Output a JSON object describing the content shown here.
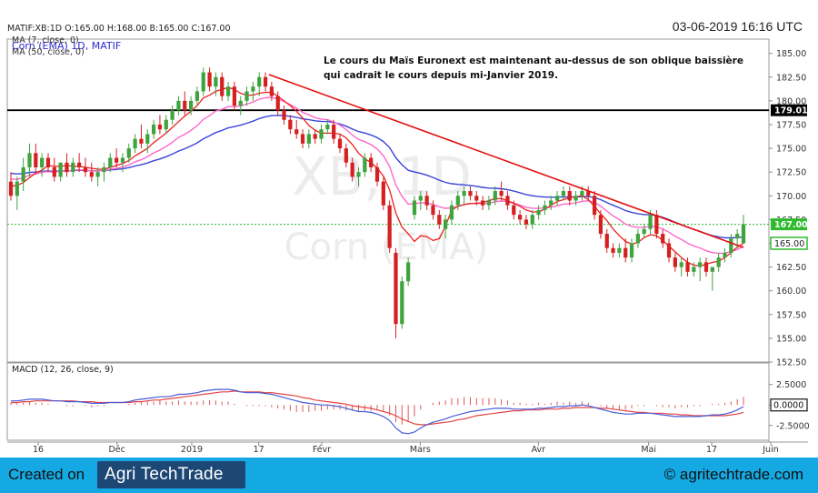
{
  "header": {
    "quote": "MATIF:XB:1D O:165.00 H:168.00 B:165.00 C:167.00",
    "date": "03-06-2019 16:16 UTC",
    "line1": "Corn (EMA) 1D, MATIF",
    "line2": "MA (7, close, 0)",
    "line3": "MA (50, close, 0)"
  },
  "annotation": {
    "line1": "Le cours du Maïs Euronext est maintenant au-dessus de son oblique baissière",
    "line2": "qui cadrait le cours depuis mi-Janvier 2019."
  },
  "watermark": {
    "symbol": "XB, 1D",
    "name": "Corn (EMA)"
  },
  "macd_label": "MACD (12, 26, close, 9)",
  "footer": {
    "created_on": "Created on",
    "logo": "Agri TechTrade",
    "copyright": "© agritechtrade.com"
  },
  "colors": {
    "up": "#3fa33f",
    "down": "#d42020",
    "ma7": "#ee2020",
    "ma50": "#ff66cc",
    "ma_long": "#3a45d8",
    "trendline": "#e21010",
    "resistance": "#000000",
    "current": "#2dbb2d",
    "macd": "#4a5cd8",
    "signal": "#e64545",
    "footer_bg": "#15a9e4",
    "logo_bg": "#1d4775"
  },
  "chart_data": [
    {
      "type": "candlestick",
      "title": "Corn (EMA) 1D, MATIF",
      "ylim": [
        152.5,
        186.5
      ],
      "y_ticks": [
        "152.50",
        "155.00",
        "157.50",
        "160.00",
        "162.50",
        "165.00",
        "167.50",
        "170.00",
        "172.50",
        "175.00",
        "177.50",
        "180.00",
        "182.50",
        "185.00"
      ],
      "x_tick_labels": [
        "16",
        "Déc",
        "2019",
        "17",
        "Févr",
        "Mars",
        "Avr",
        "Mai",
        "17",
        "Juin"
      ],
      "price_labels": {
        "resistance": "179.01",
        "current": "167.00",
        "previous": "165.00"
      },
      "resistance_level": 179.01,
      "current_level": 167.0,
      "previous_level": 165.0,
      "ohlc": [
        [
          171.5,
          172.5,
          169.5,
          170.0
        ],
        [
          170.0,
          172.0,
          168.5,
          171.5
        ],
        [
          171.5,
          174.0,
          170.5,
          173.0
        ],
        [
          173.0,
          175.5,
          172.0,
          174.5
        ],
        [
          174.5,
          175.5,
          172.5,
          173.0
        ],
        [
          173.0,
          174.5,
          172.0,
          174.0
        ],
        [
          174.0,
          174.5,
          172.5,
          173.0
        ],
        [
          173.0,
          174.0,
          171.5,
          172.0
        ],
        [
          172.0,
          173.5,
          171.5,
          173.5
        ],
        [
          173.5,
          174.5,
          172.0,
          172.5
        ],
        [
          172.5,
          174.0,
          172.0,
          173.5
        ],
        [
          173.5,
          174.5,
          172.5,
          173.0
        ],
        [
          173.0,
          174.0,
          172.0,
          172.5
        ],
        [
          172.5,
          173.5,
          171.5,
          172.0
        ],
        [
          172.0,
          173.0,
          171.0,
          172.5
        ],
        [
          172.5,
          173.5,
          171.5,
          173.0
        ],
        [
          173.0,
          174.5,
          172.5,
          174.0
        ],
        [
          174.0,
          175.0,
          173.0,
          173.5
        ],
        [
          173.5,
          174.5,
          172.5,
          174.0
        ],
        [
          174.0,
          175.5,
          173.5,
          175.0
        ],
        [
          175.0,
          176.5,
          174.5,
          176.0
        ],
        [
          176.0,
          177.5,
          175.0,
          175.5
        ],
        [
          175.5,
          177.0,
          174.5,
          176.5
        ],
        [
          176.5,
          178.0,
          176.0,
          177.5
        ],
        [
          177.5,
          178.5,
          176.5,
          177.0
        ],
        [
          177.0,
          178.5,
          176.5,
          178.0
        ],
        [
          178.0,
          179.5,
          177.5,
          179.0
        ],
        [
          179.0,
          180.5,
          178.5,
          180.0
        ],
        [
          180.0,
          181.0,
          178.5,
          179.0
        ],
        [
          179.0,
          180.5,
          178.5,
          180.0
        ],
        [
          180.0,
          181.5,
          179.5,
          181.0
        ],
        [
          181.0,
          183.5,
          180.5,
          183.0
        ],
        [
          183.0,
          183.5,
          181.0,
          181.5
        ],
        [
          181.5,
          183.0,
          180.5,
          182.5
        ],
        [
          182.5,
          183.0,
          180.0,
          180.5
        ],
        [
          180.5,
          182.0,
          180.0,
          181.5
        ],
        [
          181.5,
          182.0,
          179.0,
          179.5
        ],
        [
          179.5,
          180.5,
          178.5,
          180.0
        ],
        [
          180.0,
          181.5,
          179.5,
          181.0
        ],
        [
          181.0,
          182.0,
          180.0,
          181.5
        ],
        [
          181.5,
          183.0,
          180.5,
          182.5
        ],
        [
          182.5,
          183.0,
          181.0,
          181.5
        ],
        [
          181.5,
          182.0,
          180.0,
          180.5
        ],
        [
          180.5,
          181.0,
          178.5,
          179.0
        ],
        [
          179.0,
          179.5,
          177.5,
          178.0
        ],
        [
          178.0,
          178.5,
          176.5,
          177.0
        ],
        [
          177.0,
          178.0,
          176.0,
          176.5
        ],
        [
          176.5,
          177.0,
          175.0,
          175.5
        ],
        [
          175.5,
          177.0,
          175.0,
          176.5
        ],
        [
          176.5,
          177.0,
          175.5,
          176.0
        ],
        [
          176.0,
          177.5,
          175.5,
          177.0
        ],
        [
          177.0,
          178.0,
          176.5,
          177.5
        ],
        [
          177.5,
          178.0,
          175.5,
          176.0
        ],
        [
          176.0,
          176.5,
          174.5,
          175.0
        ],
        [
          175.0,
          175.5,
          173.0,
          173.5
        ],
        [
          173.5,
          174.0,
          171.5,
          172.0
        ],
        [
          172.0,
          173.0,
          171.0,
          172.5
        ],
        [
          172.5,
          174.5,
          172.0,
          174.0
        ],
        [
          174.0,
          174.5,
          172.5,
          173.0
        ],
        [
          173.0,
          173.5,
          171.0,
          171.5
        ],
        [
          171.5,
          172.0,
          168.5,
          169.0
        ],
        [
          169.0,
          169.5,
          164.0,
          164.5
        ],
        [
          164.0,
          164.5,
          155.0,
          156.5
        ],
        [
          156.5,
          161.5,
          156.0,
          161.0
        ],
        [
          161.0,
          163.5,
          160.5,
          163.0
        ],
        [
          168.0,
          170.0,
          167.5,
          169.5
        ],
        [
          169.5,
          170.5,
          168.5,
          170.0
        ],
        [
          170.0,
          170.5,
          168.5,
          169.0
        ],
        [
          169.0,
          169.5,
          167.5,
          168.0
        ],
        [
          168.0,
          168.5,
          166.5,
          167.0
        ],
        [
          166.5,
          168.0,
          165.5,
          167.5
        ],
        [
          167.5,
          169.5,
          167.0,
          169.0
        ],
        [
          169.0,
          170.5,
          168.5,
          170.0
        ],
        [
          170.0,
          171.0,
          169.0,
          170.5
        ],
        [
          170.5,
          171.0,
          169.5,
          170.0
        ],
        [
          170.0,
          170.5,
          169.0,
          169.5
        ],
        [
          169.5,
          170.0,
          168.5,
          169.0
        ],
        [
          169.0,
          170.0,
          168.5,
          169.5
        ],
        [
          169.5,
          171.0,
          169.0,
          170.5
        ],
        [
          170.5,
          171.5,
          169.5,
          170.0
        ],
        [
          170.0,
          170.5,
          168.5,
          169.0
        ],
        [
          169.0,
          169.5,
          167.5,
          168.0
        ],
        [
          168.0,
          168.5,
          167.0,
          167.5
        ],
        [
          167.5,
          168.0,
          166.5,
          167.0
        ],
        [
          167.0,
          168.5,
          166.5,
          168.0
        ],
        [
          168.0,
          169.0,
          167.5,
          168.5
        ],
        [
          168.5,
          169.5,
          168.0,
          169.0
        ],
        [
          169.0,
          170.0,
          168.5,
          169.5
        ],
        [
          169.5,
          170.5,
          169.0,
          170.0
        ],
        [
          170.0,
          171.0,
          169.5,
          170.5
        ],
        [
          170.5,
          171.0,
          169.0,
          169.5
        ],
        [
          169.5,
          170.5,
          169.0,
          170.0
        ],
        [
          170.0,
          171.0,
          169.5,
          170.5
        ],
        [
          170.5,
          171.0,
          169.5,
          170.0
        ],
        [
          170.0,
          170.5,
          167.5,
          168.0
        ],
        [
          168.0,
          168.5,
          165.5,
          166.0
        ],
        [
          166.0,
          166.5,
          164.0,
          164.5
        ],
        [
          164.5,
          165.0,
          163.5,
          164.0
        ],
        [
          164.0,
          165.0,
          163.5,
          164.5
        ],
        [
          164.5,
          165.5,
          163.0,
          163.5
        ],
        [
          163.5,
          165.5,
          163.0,
          165.0
        ],
        [
          165.0,
          166.5,
          164.5,
          166.0
        ],
        [
          166.0,
          167.0,
          165.5,
          166.5
        ],
        [
          166.5,
          168.5,
          166.0,
          168.0
        ],
        [
          168.0,
          168.5,
          165.5,
          166.0
        ],
        [
          166.0,
          166.5,
          164.5,
          165.0
        ],
        [
          165.0,
          165.5,
          163.0,
          163.5
        ],
        [
          163.5,
          164.0,
          162.0,
          162.5
        ],
        [
          162.5,
          163.5,
          161.5,
          163.0
        ],
        [
          163.0,
          163.5,
          161.5,
          162.0
        ],
        [
          162.0,
          163.0,
          161.5,
          162.5
        ],
        [
          162.5,
          163.5,
          161.0,
          163.0
        ],
        [
          163.0,
          163.5,
          161.5,
          162.0
        ],
        [
          162.0,
          162.5,
          160.0,
          162.5
        ],
        [
          162.5,
          164.0,
          162.0,
          163.5
        ],
        [
          163.5,
          164.5,
          163.0,
          164.0
        ],
        [
          164.0,
          166.0,
          163.5,
          165.5
        ],
        [
          165.5,
          166.5,
          164.5,
          166.0
        ],
        [
          165.0,
          168.0,
          165.0,
          167.0
        ]
      ],
      "ma7": [
        171.0,
        171.1,
        171.4,
        171.9,
        172.4,
        172.7,
        173.2,
        173.1,
        173.1,
        173.2,
        173.1,
        173.1,
        173.0,
        172.9,
        172.8,
        172.8,
        173.0,
        173.2,
        173.4,
        173.7,
        174.2,
        174.6,
        175.0,
        175.6,
        176.1,
        176.6,
        177.2,
        177.8,
        178.4,
        178.9,
        179.5,
        180.3,
        180.6,
        181.0,
        181.2,
        181.4,
        181.2,
        180.8,
        180.6,
        180.6,
        180.8,
        180.9,
        180.9,
        180.5,
        180.0,
        179.5,
        178.9,
        178.2,
        177.4,
        176.9,
        176.6,
        176.6,
        176.6,
        176.5,
        176.1,
        175.4,
        174.5,
        173.9,
        173.5,
        172.9,
        172.1,
        170.6,
        168.2,
        166.7,
        166.0,
        165.2,
        165.8,
        165.7,
        165.3,
        165.5,
        166.8,
        168.5,
        168.9,
        169.1,
        169.2,
        169.2,
        169.3,
        169.5,
        169.7,
        169.7,
        169.5,
        169.2,
        168.9,
        168.5,
        168.3,
        168.3,
        168.6,
        169.0,
        169.4,
        169.6,
        169.8,
        169.9,
        170.0,
        169.6,
        168.9,
        168.1,
        167.4,
        166.5,
        165.8,
        165.2,
        164.9,
        165.1,
        165.6,
        165.9,
        165.8,
        165.3,
        164.7,
        164.1,
        163.5,
        163.0,
        162.7,
        162.6,
        162.8,
        163.0,
        163.1,
        163.5,
        164.0,
        164.6,
        165.0
      ]
    },
    {
      "type": "line",
      "title": "MACD (12, 26, close, 9)",
      "ylim": [
        -4.3,
        3.8
      ],
      "y_ticks": [
        "2.5000",
        "0.0000",
        "-2.5000"
      ],
      "zero_label": "0.0000",
      "series": [
        {
          "values": [
            0.5,
            0.5,
            0.6,
            0.7,
            0.7,
            0.7,
            0.6,
            0.5,
            0.5,
            0.4,
            0.4,
            0.4,
            0.3,
            0.2,
            0.2,
            0.2,
            0.3,
            0.3,
            0.3,
            0.4,
            0.6,
            0.7,
            0.8,
            0.9,
            1.0,
            1.0,
            1.1,
            1.3,
            1.3,
            1.4,
            1.5,
            1.7,
            1.8,
            1.9,
            1.9,
            1.9,
            1.8,
            1.6,
            1.5,
            1.5,
            1.5,
            1.4,
            1.3,
            1.1,
            0.9,
            0.7,
            0.5,
            0.3,
            0.2,
            0.1,
            0.0,
            0.0,
            -0.1,
            -0.2,
            -0.4,
            -0.6,
            -0.8,
            -0.8,
            -0.9,
            -1.1,
            -1.4,
            -1.9,
            -2.8,
            -3.4,
            -3.5,
            -3.3,
            -2.8,
            -2.4,
            -2.1,
            -1.9,
            -1.7,
            -1.4,
            -1.2,
            -1.0,
            -0.8,
            -0.7,
            -0.6,
            -0.5,
            -0.4,
            -0.4,
            -0.4,
            -0.5,
            -0.5,
            -0.5,
            -0.5,
            -0.4,
            -0.4,
            -0.3,
            -0.2,
            -0.2,
            -0.1,
            -0.1,
            0.0,
            -0.1,
            -0.3,
            -0.5,
            -0.7,
            -0.9,
            -1.0,
            -1.1,
            -1.1,
            -1.0,
            -1.0,
            -1.0,
            -1.1,
            -1.2,
            -1.3,
            -1.4,
            -1.4,
            -1.4,
            -1.4,
            -1.4,
            -1.3,
            -1.2,
            -1.2,
            -1.1,
            -0.9,
            -0.6,
            -0.2
          ]
        },
        {
          "values": [
            0.3,
            0.3,
            0.4,
            0.4,
            0.5,
            0.5,
            0.5,
            0.5,
            0.5,
            0.5,
            0.5,
            0.4,
            0.4,
            0.4,
            0.3,
            0.3,
            0.3,
            0.3,
            0.3,
            0.3,
            0.4,
            0.4,
            0.5,
            0.6,
            0.6,
            0.7,
            0.8,
            0.9,
            1.0,
            1.1,
            1.2,
            1.3,
            1.4,
            1.5,
            1.6,
            1.6,
            1.7,
            1.6,
            1.6,
            1.6,
            1.6,
            1.5,
            1.5,
            1.4,
            1.3,
            1.2,
            1.1,
            0.9,
            0.8,
            0.6,
            0.5,
            0.4,
            0.3,
            0.2,
            0.1,
            -0.1,
            -0.2,
            -0.3,
            -0.4,
            -0.6,
            -0.8,
            -1.0,
            -1.3,
            -1.7,
            -2.0,
            -2.3,
            -2.4,
            -2.4,
            -2.3,
            -2.2,
            -2.1,
            -2.0,
            -1.8,
            -1.7,
            -1.5,
            -1.3,
            -1.2,
            -1.1,
            -1.0,
            -0.9,
            -0.8,
            -0.7,
            -0.7,
            -0.6,
            -0.6,
            -0.6,
            -0.5,
            -0.5,
            -0.5,
            -0.4,
            -0.4,
            -0.3,
            -0.3,
            -0.3,
            -0.3,
            -0.4,
            -0.4,
            -0.5,
            -0.6,
            -0.7,
            -0.8,
            -0.9,
            -0.9,
            -1.0,
            -1.0,
            -1.0,
            -1.1,
            -1.1,
            -1.2,
            -1.2,
            -1.3,
            -1.3,
            -1.3,
            -1.3,
            -1.3,
            -1.3,
            -1.2,
            -1.1,
            -0.9
          ]
        }
      ]
    }
  ]
}
